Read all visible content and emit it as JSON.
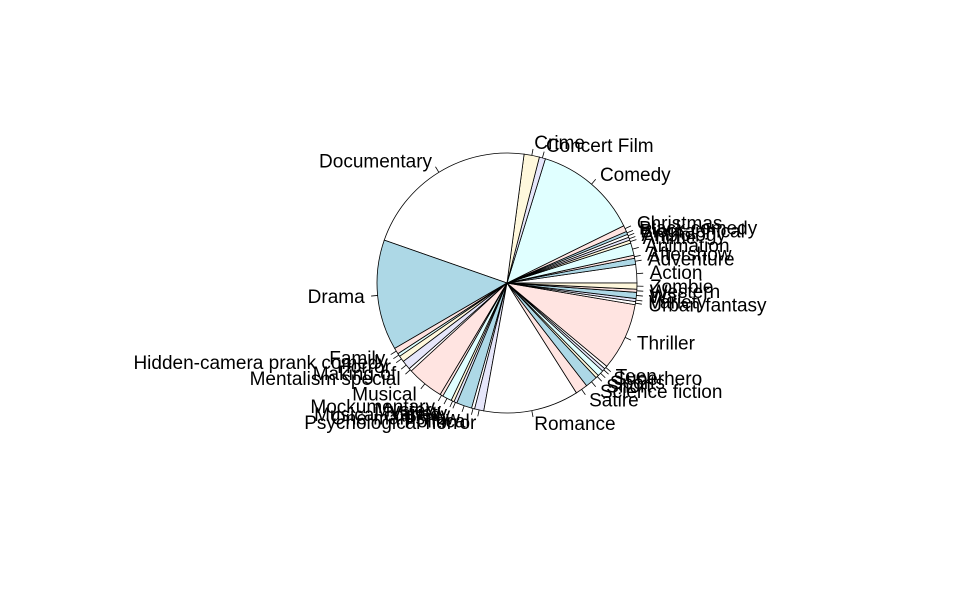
{
  "chart_data": {
    "type": "pie",
    "title": "",
    "start_angle_deg": 0,
    "direction": "counterclockwise",
    "slices": [
      {
        "label": "Action",
        "value": 6,
        "color": "#FFFFFF"
      },
      {
        "label": "Adventure",
        "value": 2,
        "color": "#ADD8E6"
      },
      {
        "label": "Aftershow",
        "value": 1,
        "color": "#FFE4E1"
      },
      {
        "label": "Animation",
        "value": 4,
        "color": "#E0FFFF"
      },
      {
        "label": "Anime",
        "value": 1,
        "color": "#FFF8DC"
      },
      {
        "label": "Anthology",
        "value": 1,
        "color": "#E6E6FA"
      },
      {
        "label": "Biographical",
        "value": 1,
        "color": "#FFFFFF"
      },
      {
        "label": "Black comedy",
        "value": 1,
        "color": "#ADD8E6"
      },
      {
        "label": "Christmas",
        "value": 2,
        "color": "#FFE4E1"
      },
      {
        "label": "Comedy",
        "value": 34,
        "color": "#E0FFFF"
      },
      {
        "label": "Concert Film",
        "value": 2,
        "color": "#E6E6FA"
      },
      {
        "label": "Crime",
        "value": 5,
        "color": "#FFF8DC"
      },
      {
        "label": "Documentary",
        "value": 57,
        "color": "#FFFFFF"
      },
      {
        "label": "Drama",
        "value": 36,
        "color": "#ADD8E6"
      },
      {
        "label": "Family",
        "value": 2,
        "color": "#FFE4E1"
      },
      {
        "label": "Hidden-camera prank comedy",
        "value": 1,
        "color": "#E0FFFF"
      },
      {
        "label": "Horror",
        "value": 2,
        "color": "#FFF8DC"
      },
      {
        "label": "Making-of",
        "value": 3,
        "color": "#E6E6FA"
      },
      {
        "label": "Mentalism special",
        "value": 1,
        "color": "#FFFFFF"
      },
      {
        "label": "Musical",
        "value": 12,
        "color": "#FFE4E1"
      },
      {
        "label": "Mockumentary",
        "value": 1,
        "color": "#FFE4E1"
      },
      {
        "label": "Mystery",
        "value": 3,
        "color": "#E0FFFF"
      },
      {
        "label": "Variety",
        "value": 1,
        "color": "#FFF8DC"
      },
      {
        "label": "Musical comedy",
        "value": 1,
        "color": "#E6E6FA"
      },
      {
        "label": "One-man show",
        "value": 5,
        "color": "#ADD8E6"
      },
      {
        "label": "Political",
        "value": 1,
        "color": "#FFFFFF"
      },
      {
        "label": "Psychological horror",
        "value": 3,
        "color": "#E6E6FA"
      },
      {
        "label": "Romance",
        "value": 31,
        "color": "#FFFFFF"
      },
      {
        "label": "Satire",
        "value": 4,
        "color": "#FFE4E1"
      },
      {
        "label": "Science fiction",
        "value": 4,
        "color": "#ADD8E6"
      },
      {
        "label": "Short",
        "value": 1,
        "color": "#FFF8DC"
      },
      {
        "label": "Sports",
        "value": 2,
        "color": "#E0FFFF"
      },
      {
        "label": "Superhero",
        "value": 1,
        "color": "#E6E6FA"
      },
      {
        "label": "Teen",
        "value": 1,
        "color": "#FFFFFF"
      },
      {
        "label": "Thriller",
        "value": 22,
        "color": "#FFE4E1"
      },
      {
        "label": "Urban fantasy",
        "value": 1,
        "color": "#FFFFFF"
      },
      {
        "label": "Variety",
        "value": 1,
        "color": "#E6E6FA"
      },
      {
        "label": "War",
        "value": 2,
        "color": "#ADD8E6"
      },
      {
        "label": "Western",
        "value": 1,
        "color": "#FFE4E1"
      },
      {
        "label": "Zombie",
        "value": 2,
        "color": "#FFF8DC"
      }
    ]
  }
}
